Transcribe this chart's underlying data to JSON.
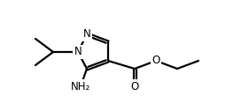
{
  "bg_color": "#ffffff",
  "line_color": "#000000",
  "line_width": 1.6,
  "figsize": [
    2.72,
    1.26
  ],
  "dpi": 100,
  "xlim": [
    0,
    2.72
  ],
  "ylim": [
    0,
    1.26
  ]
}
